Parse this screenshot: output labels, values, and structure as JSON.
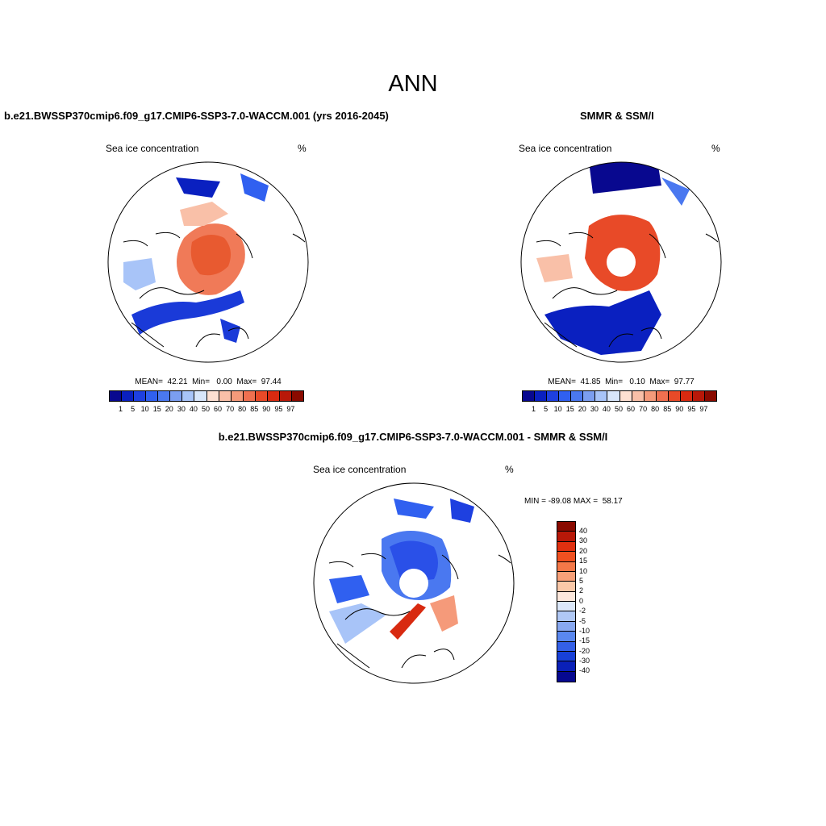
{
  "main_title": "ANN",
  "panels": {
    "model": {
      "title": "b.e21.BWSSP370cmip6.f09_g17.CMIP6-SSP3-7.0-WACCM.001 (yrs 2016-2045)",
      "left_label": "Sea ice concentration",
      "right_label": "%",
      "stats": "MEAN=  42.21  Min=   0.00  Max=  97.44"
    },
    "obs": {
      "title": "SMMR & SSM/I",
      "left_label": "Sea ice concentration",
      "right_label": "%",
      "stats": "MEAN=  41.85  Min=   0.10  Max=  97.77"
    },
    "diff": {
      "title": "b.e21.BWSSP370cmip6.f09_g17.CMIP6-SSP3-7.0-WACCM.001 - SMMR & SSM/I",
      "left_label": "Sea ice concentration",
      "right_label": "%",
      "stats": "MIN = -89.08 MAX =  58.17"
    }
  },
  "colorbar_conc": {
    "labels": [
      "1",
      "5",
      "10",
      "15",
      "20",
      "30",
      "40",
      "50",
      "60",
      "70",
      "80",
      "85",
      "90",
      "95",
      "97"
    ],
    "colors": [
      "#08088f",
      "#0a20c0",
      "#1e40e0",
      "#3060f0",
      "#4a78f0",
      "#7b9ef0",
      "#a8c4f8",
      "#d8e6fa",
      "#fde0d2",
      "#f9c0a8",
      "#f59a7a",
      "#f07050",
      "#e84a28",
      "#d82a10",
      "#b81808",
      "#8a0a00"
    ]
  },
  "colorbar_diff": {
    "labels": [
      "40",
      "30",
      "20",
      "15",
      "10",
      "5",
      "2",
      "0",
      "-2",
      "-5",
      "-10",
      "-15",
      "-20",
      "-30",
      "-40"
    ],
    "colors": [
      "#8a0a00",
      "#b81808",
      "#e03010",
      "#f05020",
      "#f57848",
      "#f8a078",
      "#fac8a8",
      "#fde8dc",
      "#dce8fa",
      "#b0c8f5",
      "#88a8f0",
      "#5a88f0",
      "#3460e8",
      "#1840d8",
      "#0a20b8",
      "#060890"
    ]
  }
}
